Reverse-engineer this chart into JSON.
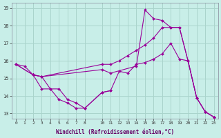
{
  "bg_color": "#c8eee8",
  "grid_color": "#aad4cc",
  "line_color": "#990099",
  "xlabel": "Windchill (Refroidissement éolien,°C)",
  "xlim": [
    -0.5,
    23.5
  ],
  "ylim": [
    12.7,
    19.3
  ],
  "yticks": [
    13,
    14,
    15,
    16,
    17,
    18,
    19
  ],
  "xticks": [
    0,
    1,
    2,
    3,
    4,
    5,
    6,
    7,
    8,
    10,
    11,
    12,
    13,
    14,
    15,
    16,
    17,
    18,
    19,
    20,
    21,
    22,
    23
  ],
  "lines": [
    {
      "x": [
        0,
        1,
        2,
        3,
        4,
        5,
        6,
        7,
        8,
        10,
        11,
        12,
        13,
        14,
        15,
        16,
        17,
        18,
        19,
        20,
        21,
        22,
        23
      ],
      "y": [
        15.8,
        15.7,
        15.2,
        15.1,
        14.4,
        14.4,
        13.8,
        13.6,
        13.3,
        14.2,
        14.3,
        15.4,
        15.3,
        15.8,
        15.9,
        16.1,
        16.4,
        17.0,
        16.1,
        16.0,
        13.9,
        13.1,
        12.8
      ]
    },
    {
      "x": [
        0,
        2,
        3,
        10,
        11,
        12,
        13,
        14,
        15,
        16,
        17,
        18,
        19,
        20,
        21,
        22,
        23
      ],
      "y": [
        15.8,
        15.2,
        15.1,
        15.8,
        15.8,
        16.0,
        16.3,
        16.6,
        16.9,
        17.3,
        17.9,
        17.9,
        17.9,
        16.0,
        13.9,
        13.1,
        12.8
      ]
    },
    {
      "x": [
        0,
        2,
        3,
        4,
        5,
        6,
        7,
        8,
        10,
        11
      ],
      "y": [
        15.8,
        15.2,
        14.4,
        14.4,
        13.8,
        13.6,
        13.3,
        13.3,
        14.2,
        14.3
      ]
    },
    {
      "x": [
        2,
        3,
        10,
        11,
        14,
        15,
        16,
        17,
        18,
        19,
        20,
        21,
        22,
        23
      ],
      "y": [
        15.2,
        15.1,
        15.5,
        15.3,
        15.7,
        18.9,
        18.4,
        18.3,
        17.9,
        17.9,
        16.0,
        13.9,
        13.1,
        12.8
      ]
    }
  ]
}
